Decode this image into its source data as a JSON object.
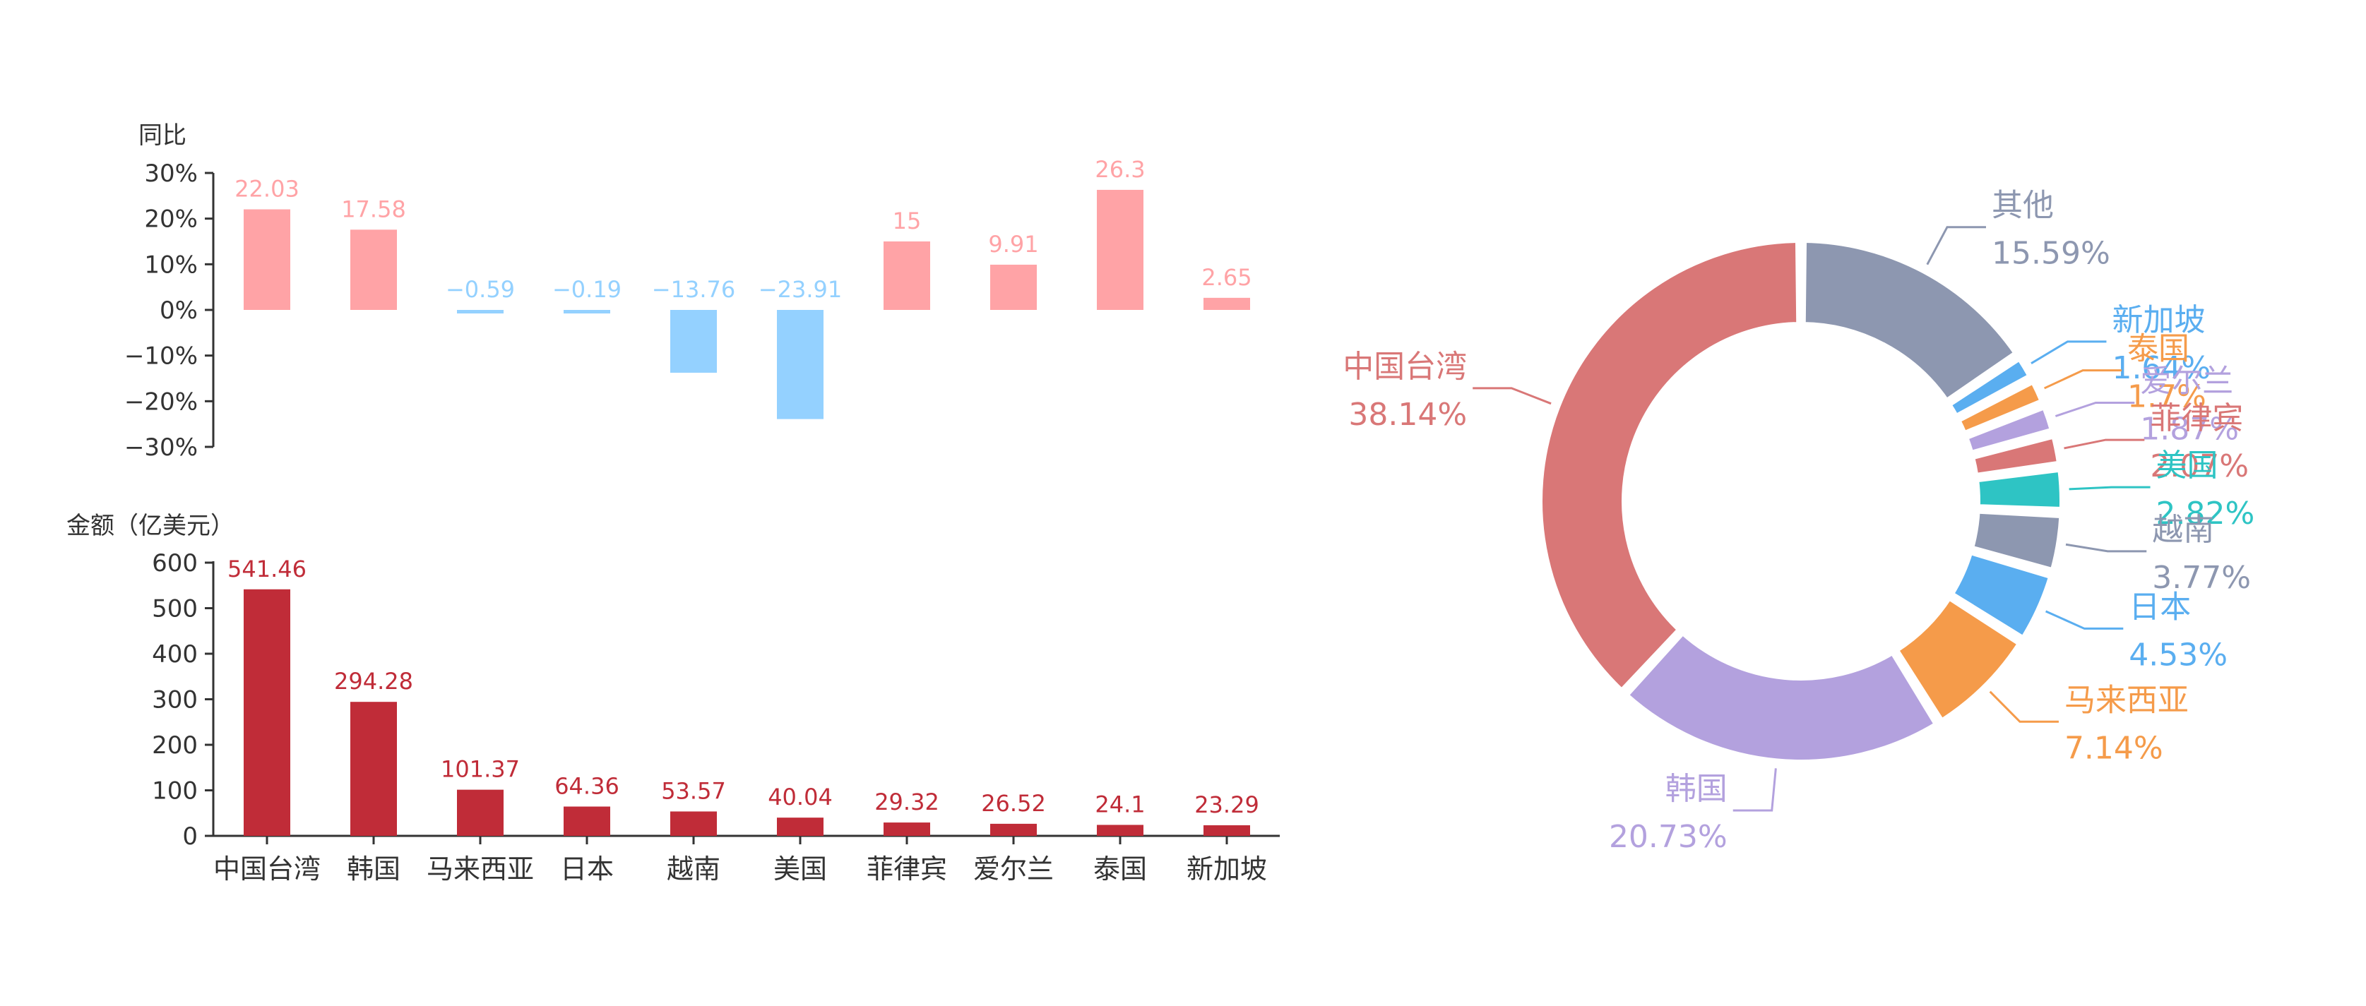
{
  "chart_data": [
    {
      "type": "bar",
      "ylabel": "同比",
      "categories": [
        "中国台湾",
        "韩国",
        "马来西亚",
        "日本",
        "越南",
        "美国",
        "菲律宾",
        "爱尔兰",
        "泰国",
        "新加坡"
      ],
      "values": [
        22.03,
        17.58,
        -0.59,
        -0.19,
        -13.76,
        -23.91,
        15,
        9.91,
        26.3,
        2.65
      ],
      "labels": [
        "22.03",
        "17.58",
        "−0.59",
        "−0.19",
        "−13.76",
        "−23.91",
        "15",
        "9.91",
        "26.3",
        "2.65"
      ],
      "ylim": [
        -30,
        30
      ],
      "yticks": [
        30,
        20,
        10,
        0,
        -10,
        -20,
        -30
      ],
      "ytick_labels": [
        "30%",
        "20%",
        "10%",
        "0%",
        "−10%",
        "−20%",
        "−30%"
      ],
      "colors": {
        "positive": "#ffa3a6",
        "negative": "#94d1ff",
        "positive_label": "#ffa3a6",
        "negative_label": "#94d1ff"
      }
    },
    {
      "type": "bar",
      "ylabel": "金额（亿美元）",
      "categories": [
        "中国台湾",
        "韩国",
        "马来西亚",
        "日本",
        "越南",
        "美国",
        "菲律宾",
        "爱尔兰",
        "泰国",
        "新加坡"
      ],
      "values": [
        541.46,
        294.28,
        101.37,
        64.36,
        53.57,
        40.04,
        29.32,
        26.52,
        24.1,
        23.29
      ],
      "labels": [
        "541.46",
        "294.28",
        "101.37",
        "64.36",
        "53.57",
        "40.04",
        "29.32",
        "26.52",
        "24.1",
        "23.29"
      ],
      "ylim": [
        0,
        600
      ],
      "yticks": [
        600,
        500,
        400,
        300,
        200,
        100,
        0
      ],
      "ytick_labels": [
        "600",
        "500",
        "400",
        "300",
        "200",
        "100",
        "0"
      ],
      "colors": {
        "bar": "#c02c38",
        "label": "#c02c38"
      }
    },
    {
      "type": "pie",
      "donut": true,
      "slices": [
        {
          "name": "其他",
          "value": 15.59,
          "label": "15.59%",
          "color": "#8d97b0"
        },
        {
          "name": "新加坡",
          "value": 1.64,
          "label": "1.64%",
          "color": "#5aaef0"
        },
        {
          "name": "泰国",
          "value": 1.7,
          "label": "1.7%",
          "color": "#f59b4a"
        },
        {
          "name": "爱尔兰",
          "value": 1.87,
          "label": "1.87%",
          "color": "#b3a1de"
        },
        {
          "name": "菲律宾",
          "value": 2.07,
          "label": "2.07%",
          "color": "#d97777"
        },
        {
          "name": "美国",
          "value": 2.82,
          "label": "2.82%",
          "color": "#2ec4c4"
        },
        {
          "name": "越南",
          "value": 3.77,
          "label": "3.77%",
          "color": "#8d97b0"
        },
        {
          "name": "日本",
          "value": 4.53,
          "label": "4.53%",
          "color": "#5aaef0"
        },
        {
          "name": "马来西亚",
          "value": 7.14,
          "label": "7.14%",
          "color": "#f59b4a"
        },
        {
          "name": "韩国",
          "value": 20.73,
          "label": "20.73%",
          "color": "#b3a1de"
        },
        {
          "name": "中国台湾",
          "value": 38.14,
          "label": "38.14%",
          "color": "#d97777"
        }
      ]
    }
  ]
}
